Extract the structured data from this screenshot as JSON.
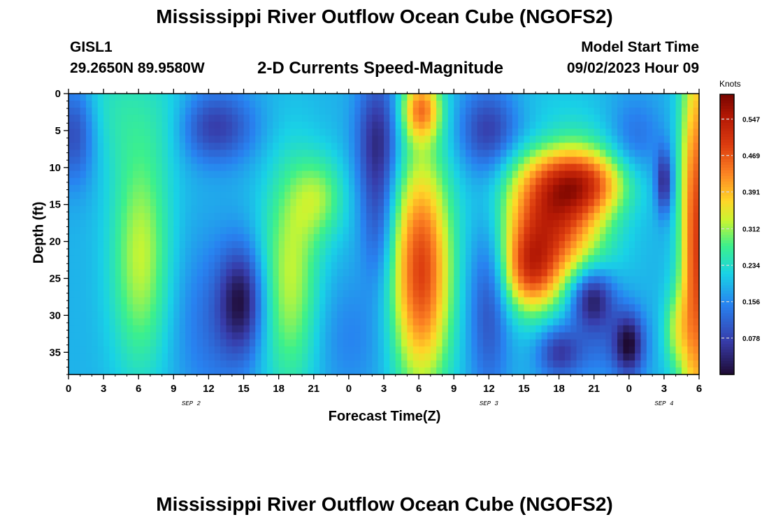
{
  "header": {
    "title": "Mississippi River Outflow Ocean Cube (NGOFS2)",
    "station": "GISL1",
    "coords": "29.2650N  89.9580W",
    "subtitle": "2-D Currents Speed-Magnitude",
    "start_label": "Model Start Time",
    "start_value": "09/02/2023 Hour 09"
  },
  "footer": {
    "title": "Mississippi River Outflow Ocean Cube (NGOFS2)"
  },
  "chart_data": {
    "type": "heatmap",
    "title": "2-D Currents Speed-Magnitude",
    "xlabel": "Forecast Time(Z)",
    "ylabel": "Depth (ft)",
    "x_range_hours": [
      0,
      54
    ],
    "ylim": [
      0,
      38
    ],
    "x_ticks": [
      "0",
      "3",
      "6",
      "9",
      "12",
      "15",
      "18",
      "21",
      "0",
      "3",
      "6",
      "9",
      "12",
      "15",
      "18",
      "21",
      "0",
      "3",
      "6"
    ],
    "x_tick_hours": [
      0,
      3,
      6,
      9,
      12,
      15,
      18,
      21,
      24,
      27,
      30,
      33,
      36,
      39,
      42,
      45,
      48,
      51,
      54
    ],
    "date_labels": [
      {
        "text": "SEP 2",
        "hour": 10.5
      },
      {
        "text": "SEP 3",
        "hour": 36
      },
      {
        "text": "SEP 4",
        "hour": 51
      }
    ],
    "y_ticks": [
      0,
      5,
      10,
      15,
      20,
      25,
      30,
      35
    ],
    "colorbar": {
      "unit": "Knots",
      "vmin": 0,
      "vmax": 0.6,
      "ticks": [
        0.078,
        0.156,
        0.234,
        0.312,
        0.391,
        0.469,
        0.547
      ],
      "tick_labels": [
        "0.078",
        "0.156",
        "0.234",
        "0.312",
        "0.391",
        "0.469",
        "0.547"
      ]
    },
    "features": [
      {
        "h": 0.5,
        "d": 5,
        "sh": 1.3,
        "sd": 5,
        "v": -0.13
      },
      {
        "h": 3,
        "d": 2,
        "sh": 4,
        "sd": 6,
        "v": 0.05
      },
      {
        "h": 6.2,
        "d": 22,
        "sh": 1.8,
        "sd": 11,
        "v": 0.14
      },
      {
        "h": 12.5,
        "d": 4.5,
        "sh": 2.4,
        "sd": 3.5,
        "v": -0.12
      },
      {
        "h": 14.8,
        "d": 28,
        "sh": 1.3,
        "sd": 5,
        "v": -0.15
      },
      {
        "h": 12.5,
        "d": 31,
        "sh": 2.5,
        "sd": 8,
        "v": -0.06
      },
      {
        "h": 19,
        "d": 25,
        "sh": 1.8,
        "sd": 11,
        "v": 0.14
      },
      {
        "h": 21.5,
        "d": 14,
        "sh": 1.6,
        "sd": 4,
        "v": 0.1
      },
      {
        "h": 26.5,
        "d": 6,
        "sh": 1.3,
        "sd": 6,
        "v": -0.14
      },
      {
        "h": 26.5,
        "d": 18,
        "sh": 1.0,
        "sd": 6,
        "v": -0.08
      },
      {
        "h": 30.2,
        "d": 24,
        "sh": 1.8,
        "sd": 11,
        "v": 0.3
      },
      {
        "h": 30.2,
        "d": 2,
        "sh": 1.2,
        "sd": 3,
        "v": 0.22
      },
      {
        "h": 36,
        "d": 5,
        "sh": 1.8,
        "sd": 4,
        "v": -0.12
      },
      {
        "h": 36,
        "d": 28,
        "sh": 1.2,
        "sd": 9,
        "v": -0.1
      },
      {
        "h": 41.5,
        "d": 16,
        "sh": 3.0,
        "sd": 7,
        "v": 0.32
      },
      {
        "h": 39.5,
        "d": 24,
        "sh": 1.6,
        "sd": 4,
        "v": 0.2
      },
      {
        "h": 44.5,
        "d": 12,
        "sh": 2.5,
        "sd": 3,
        "v": 0.18
      },
      {
        "h": 40.5,
        "d": 6,
        "sh": 2.2,
        "sd": 3,
        "v": -0.05
      },
      {
        "h": 44.8,
        "d": 27.5,
        "sh": 1.3,
        "sd": 2.8,
        "v": -0.17
      },
      {
        "h": 42,
        "d": 35,
        "sh": 1.3,
        "sd": 2.5,
        "v": -0.12
      },
      {
        "h": 48,
        "d": 34,
        "sh": 0.9,
        "sd": 3,
        "v": -0.17
      },
      {
        "h": 45.5,
        "d": 33,
        "sh": 2.0,
        "sd": 4,
        "v": -0.06
      },
      {
        "h": 48.5,
        "d": 6,
        "sh": 1.6,
        "sd": 4,
        "v": -0.06
      },
      {
        "h": 51,
        "d": 12,
        "sh": 0.5,
        "sd": 3,
        "v": -0.15
      },
      {
        "h": 53.8,
        "d": 20,
        "sh": 1.0,
        "sd": 20,
        "v": 0.3
      },
      {
        "h": 52,
        "d": 32,
        "sh": 0.8,
        "sd": 4,
        "v": 0.1
      },
      {
        "h": 24,
        "d": 33,
        "sh": 2.5,
        "sd": 6,
        "v": -0.04
      },
      {
        "h": 9,
        "d": 4,
        "sh": 1.5,
        "sd": 4,
        "v": 0.03
      }
    ],
    "base_value": 0.19
  }
}
